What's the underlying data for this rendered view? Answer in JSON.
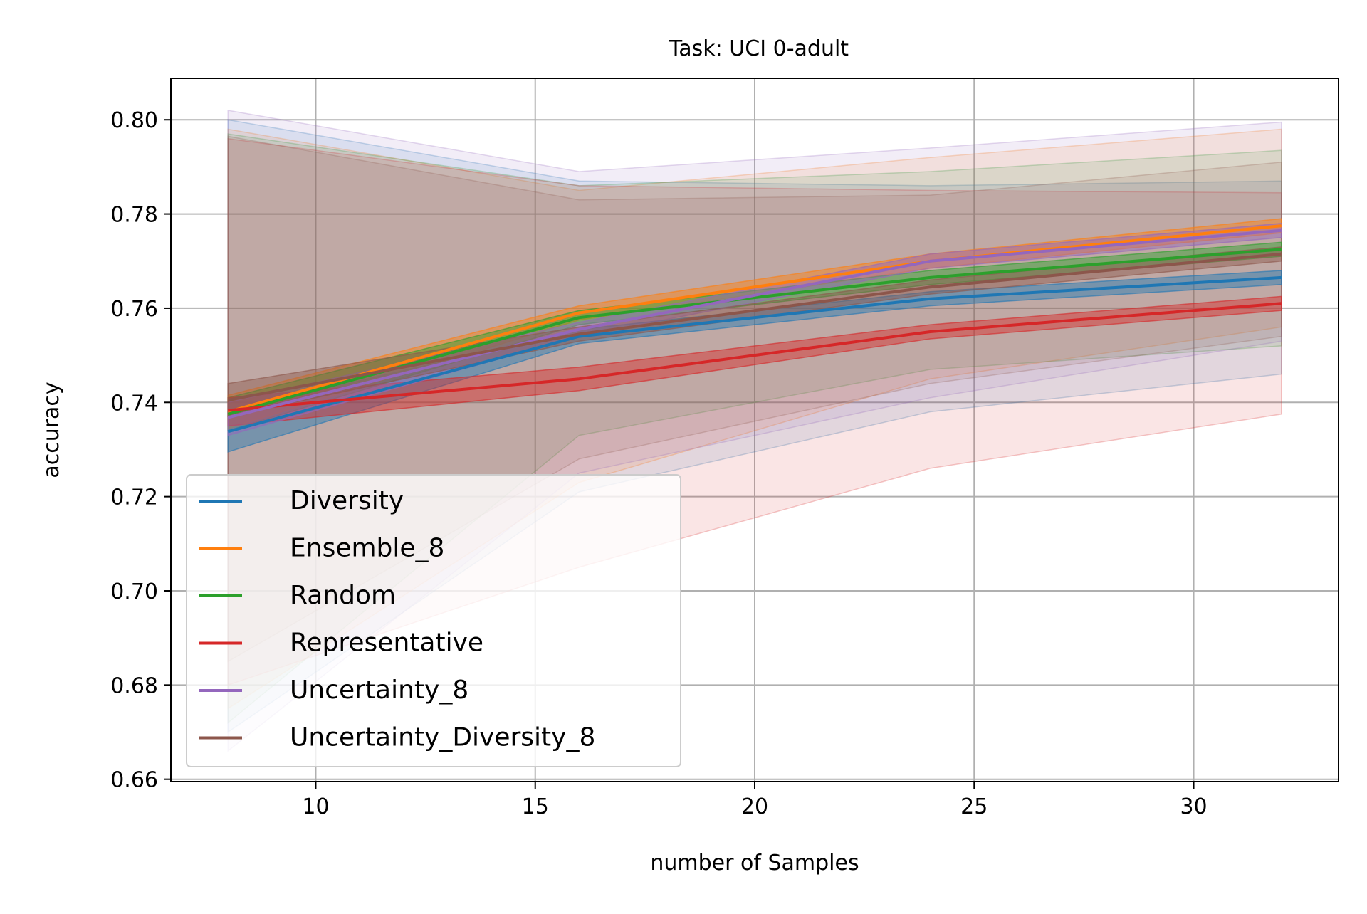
{
  "chart_data": {
    "type": "line",
    "title": "Task: UCI 0-adult",
    "xlabel": "number of Samples",
    "ylabel": "accuracy",
    "xlim": [
      6.7,
      33.3
    ],
    "ylim": [
      0.6595,
      0.8088
    ],
    "xticks": [
      10,
      15,
      20,
      25,
      30
    ],
    "xtick_labels": [
      "10",
      "15",
      "20",
      "25",
      "30"
    ],
    "yticks": [
      0.66,
      0.68,
      0.7,
      0.72,
      0.74,
      0.76,
      0.78,
      0.8
    ],
    "ytick_labels": [
      "0.66",
      "0.68",
      "0.70",
      "0.72",
      "0.74",
      "0.76",
      "0.78",
      "0.80"
    ],
    "grid": true,
    "legend_position": "lower-left",
    "x": [
      8,
      16,
      24,
      32
    ],
    "series": [
      {
        "name": "Diversity",
        "color": "#1f77b4",
        "values": [
          0.7338,
          0.754,
          0.762,
          0.7665
        ],
        "mean_band": [
          [
            0.7295,
            0.7525,
            0.7605,
            0.765
          ],
          [
            0.738,
            0.7555,
            0.7635,
            0.768
          ]
        ],
        "spread_band": [
          [
            0.67,
            0.721,
            0.738,
            0.746
          ],
          [
            0.8,
            0.787,
            0.786,
            0.787
          ]
        ]
      },
      {
        "name": "Ensemble_8",
        "color": "#ff7f0e",
        "values": [
          0.738,
          0.759,
          0.77,
          0.7775
        ],
        "mean_band": [
          [
            0.7345,
            0.7575,
            0.7685,
            0.776
          ],
          [
            0.7415,
            0.7605,
            0.7715,
            0.779
          ]
        ],
        "spread_band": [
          [
            0.675,
            0.723,
            0.745,
            0.756
          ],
          [
            0.798,
            0.785,
            0.792,
            0.798
          ]
        ]
      },
      {
        "name": "Random",
        "color": "#2ca02c",
        "values": [
          0.7375,
          0.758,
          0.7665,
          0.7725
        ],
        "mean_band": [
          [
            0.734,
            0.7565,
            0.765,
            0.771
          ],
          [
            0.741,
            0.7595,
            0.768,
            0.774
          ]
        ],
        "spread_band": [
          [
            0.672,
            0.733,
            0.747,
            0.752
          ],
          [
            0.797,
            0.786,
            0.789,
            0.7935
          ]
        ]
      },
      {
        "name": "Representative",
        "color": "#d62728",
        "values": [
          0.7383,
          0.745,
          0.755,
          0.761
        ],
        "mean_band": [
          [
            0.735,
            0.7425,
            0.7535,
            0.7595
          ],
          [
            0.741,
            0.7475,
            0.7565,
            0.7625
          ]
        ],
        "spread_band": [
          [
            0.68,
            0.705,
            0.726,
            0.7375
          ],
          [
            0.796,
            0.786,
            0.785,
            0.7845
          ]
        ]
      },
      {
        "name": "Uncertainty_8",
        "color": "#9467bd",
        "values": [
          0.7368,
          0.7555,
          0.77,
          0.7765
        ],
        "mean_band": [
          [
            0.733,
            0.754,
            0.7685,
            0.775
          ],
          [
            0.74,
            0.757,
            0.7715,
            0.778
          ]
        ],
        "spread_band": [
          [
            0.666,
            0.725,
            0.741,
            0.753
          ],
          [
            0.802,
            0.789,
            0.794,
            0.7995
          ]
        ]
      },
      {
        "name": "Uncertainty_Diversity_8",
        "color": "#8c564b",
        "values": [
          0.7405,
          0.7545,
          0.7645,
          0.7715
        ],
        "mean_band": [
          [
            0.737,
            0.753,
            0.763,
            0.77
          ],
          [
            0.744,
            0.756,
            0.766,
            0.773
          ]
        ],
        "spread_band": [
          [
            0.685,
            0.728,
            0.744,
            0.754
          ],
          [
            0.7965,
            0.783,
            0.784,
            0.791
          ]
        ]
      }
    ]
  }
}
